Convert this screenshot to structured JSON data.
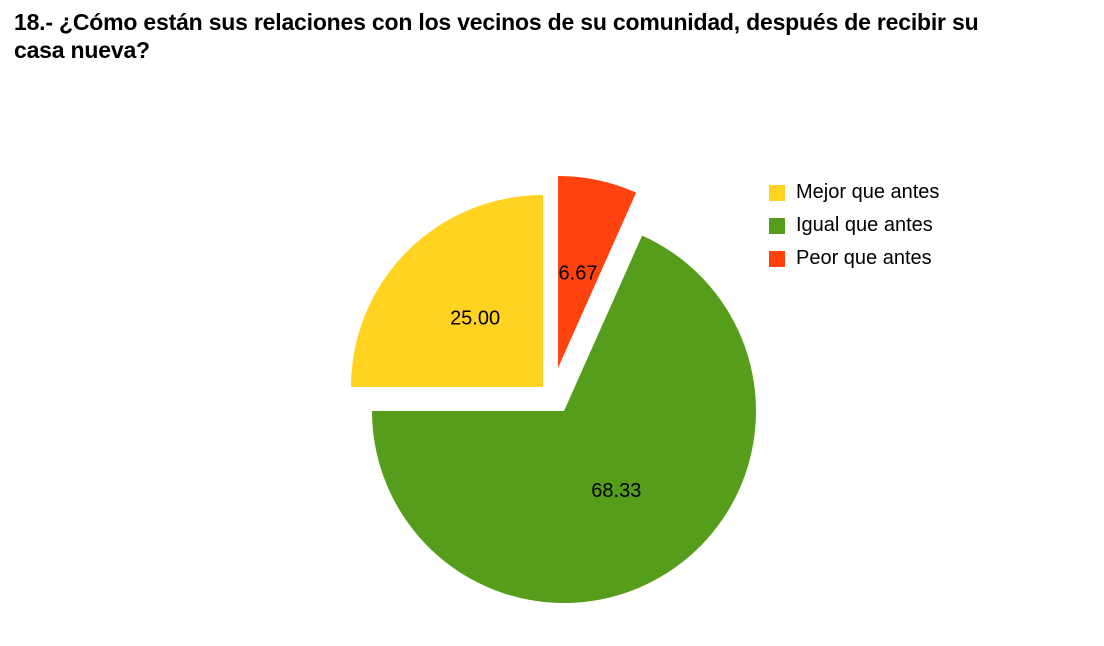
{
  "title": {
    "line1": "18.- ¿Cómo están sus relaciones con los vecinos de su comunidad, después de recibir su",
    "line2": "casa nueva?"
  },
  "chart_data": {
    "type": "pie",
    "title": "18.- ¿Cómo están sus relaciones con los vecinos de su comunidad, después de recibir su casa nueva?",
    "unit": "percent",
    "legend_position": "right",
    "layout": {
      "center": [
        559,
        403
      ],
      "radius": 192,
      "start_angle_deg": 90,
      "direction": "ccw",
      "label_radius_factor": 0.5
    },
    "slices": [
      {
        "label": "Mejor que antes",
        "value": 25.0,
        "value_label": "25.00",
        "color": "#FFD320",
        "explode": [
          -16,
          -16
        ]
      },
      {
        "label": "Igual que antes",
        "value": 68.33,
        "value_label": "68.33",
        "color": "#579D1C",
        "explode": [
          5,
          8
        ]
      },
      {
        "label": "Peor que antes",
        "value": 6.67,
        "value_label": "6.67",
        "color": "#FF420E",
        "explode": [
          -1,
          -35
        ]
      }
    ]
  }
}
